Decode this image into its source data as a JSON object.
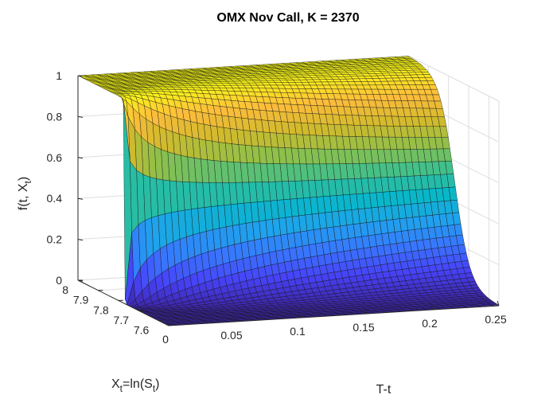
{
  "chart_data": {
    "type": "surface",
    "title": "OMX Nov Call, K = 2370",
    "xlabel": "T-t",
    "ylabel_main": "X",
    "ylabel_sub": "t",
    "ylabel_mid": "=ln(S",
    "ylabel_sub2": "t",
    "ylabel_end": ")",
    "zlabel_main": "f(t, X",
    "zlabel_sub": "t",
    "zlabel_end": ")",
    "x_ticks": [
      "0",
      "0.05",
      "0.1",
      "0.15",
      "0.2",
      "0.25"
    ],
    "y_ticks": [
      "7.6",
      "7.7",
      "7.8",
      "7.9",
      "8"
    ],
    "z_ticks": [
      "0",
      "0.2",
      "0.4",
      "0.6",
      "0.8",
      "1"
    ],
    "xlim": [
      0,
      0.25
    ],
    "ylim": [
      7.55,
      8.0
    ],
    "zlim": [
      0,
      1
    ],
    "strike_log": 7.77,
    "colormap": [
      "#3e26a8",
      "#4743f8",
      "#3877ff",
      "#1fa3ec",
      "#08b8c8",
      "#3cc08e",
      "#8ec04a",
      "#d1ba2d",
      "#fdbc3c",
      "#f9fb15"
    ],
    "grid": true,
    "surface_description": "Probability-like surface rising from 0 (low X) to 1 (high X) in a logistic shape around the strike; the step is sharp as T-t approaches 0 and spreads as T-t grows"
  }
}
